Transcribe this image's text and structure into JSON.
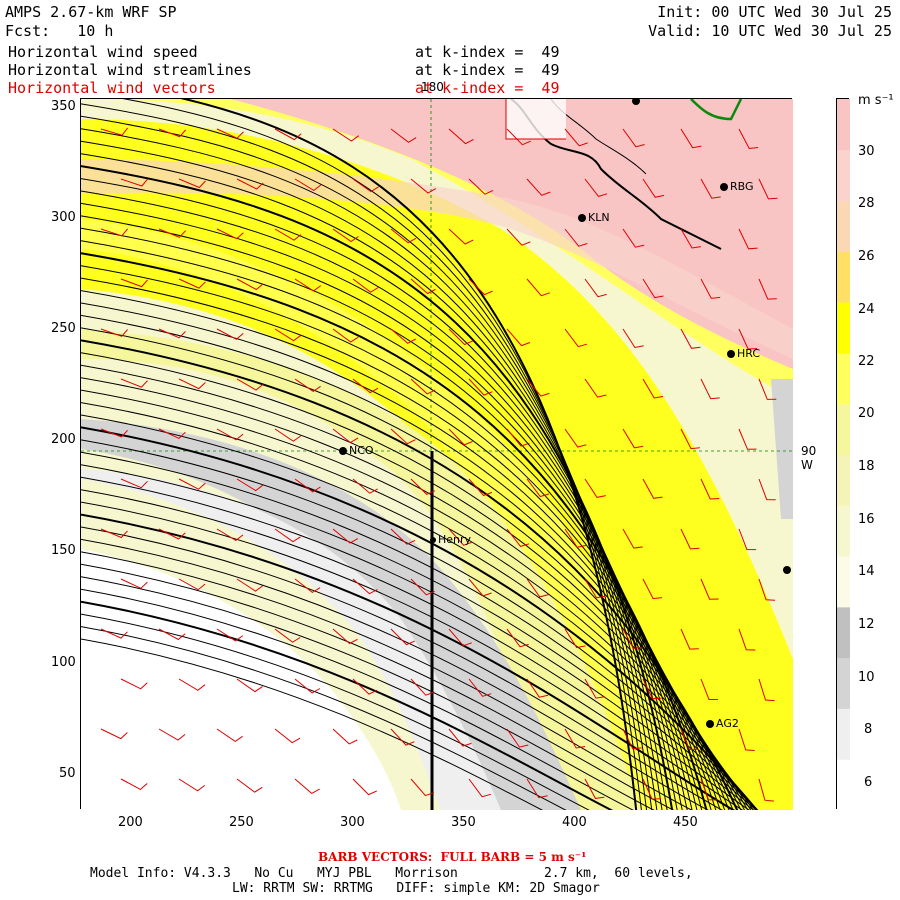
{
  "header": {
    "model_title": "AMPS 2.67-km WRF SP",
    "forecast": "Fcst:   10 h",
    "init": "Init: 00 UTC Wed 30 Jul 25",
    "valid": "Valid: 10 UTC Wed 30 Jul 25",
    "fields": [
      {
        "label": "Horizontal wind speed",
        "level": "at k-index =  49",
        "color": "#000000"
      },
      {
        "label": "Horizontal wind streamlines",
        "level": "at k-index =  49",
        "color": "#000000"
      },
      {
        "label": "Horizontal wind vectors",
        "level": "at k-index =  49",
        "color": "#e00000"
      }
    ]
  },
  "map": {
    "x_ticks": [
      "200",
      "250",
      "300",
      "350",
      "400",
      "450"
    ],
    "y_ticks": [
      "350",
      "300",
      "250",
      "200",
      "150",
      "100",
      "50"
    ],
    "meridian_label": "180",
    "parallel_label": "90 W",
    "stations": [
      {
        "name": "KLN"
      },
      {
        "name": "RBG"
      },
      {
        "name": "HRC"
      },
      {
        "name": "NCO"
      },
      {
        "name": "Henry"
      },
      {
        "name": "AG2"
      }
    ]
  },
  "colorbar": {
    "unit": "m s⁻¹",
    "labels": [
      "30",
      "28",
      "26",
      "24",
      "22",
      "20",
      "18",
      "16",
      "14",
      "12",
      "10",
      "8",
      "6"
    ],
    "colors": [
      "#ffffff",
      "#efefef",
      "#d4d4d4",
      "#c0c0c0",
      "#fbfbe8",
      "#f7f7cf",
      "#f4f4b6",
      "#f6f69c",
      "#ffff60",
      "#ffff00",
      "#ffe066",
      "#fbd8b4",
      "#fad4cc",
      "#f8c4c4"
    ]
  },
  "footer": {
    "barb_note": "BARB VECTORS:  FULL BARB = 5 m s⁻¹",
    "model_info": "Model Info: V4.3.3   No Cu   MYJ PBL   Morrison           2.7 km,  60 levels,",
    "physics": "LW: RRTM SW: RRTMG   DIFF: simple KM: 2D Smagor"
  }
}
